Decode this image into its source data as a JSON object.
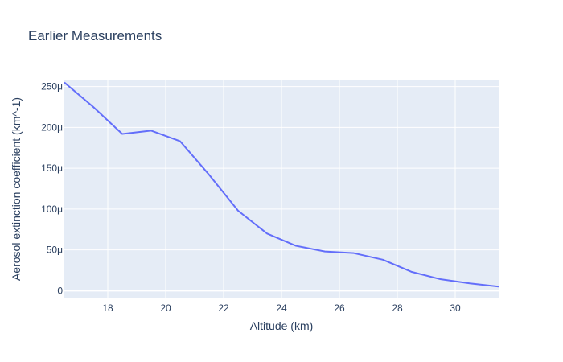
{
  "chart_data": {
    "type": "line",
    "title": "Earlier Measurements",
    "xlabel": "Altitude (km)",
    "ylabel": "Aerosol extinction coefficient (km^-1)",
    "xlim": [
      16.5,
      31.5
    ],
    "ylim": [
      -8.5e-06,
      0.0002575
    ],
    "x_ticks": [
      18,
      20,
      22,
      24,
      26,
      28,
      30
    ],
    "x_tick_labels": [
      "18",
      "20",
      "22",
      "24",
      "26",
      "28",
      "30"
    ],
    "y_ticks": [
      0,
      5e-05,
      0.0001,
      0.00015,
      0.0002,
      0.00025
    ],
    "y_tick_labels": [
      "0",
      "50μ",
      "100μ",
      "150μ",
      "200μ",
      "250μ"
    ],
    "grid": true,
    "series": [
      {
        "color": "#636efa",
        "x": [
          16.5,
          17.5,
          18.5,
          19.5,
          20.5,
          21.5,
          22.5,
          23.5,
          24.5,
          25.5,
          26.5,
          27.5,
          28.5,
          29.5,
          30.5,
          31.5
        ],
        "y": [
          0.000255,
          0.000225,
          0.000192,
          0.000196,
          0.000183,
          0.000142,
          9.8e-05,
          7e-05,
          5.5e-05,
          4.8e-05,
          4.6e-05,
          3.8e-05,
          2.3e-05,
          1.4e-05,
          9e-06,
          5e-06
        ]
      }
    ]
  }
}
